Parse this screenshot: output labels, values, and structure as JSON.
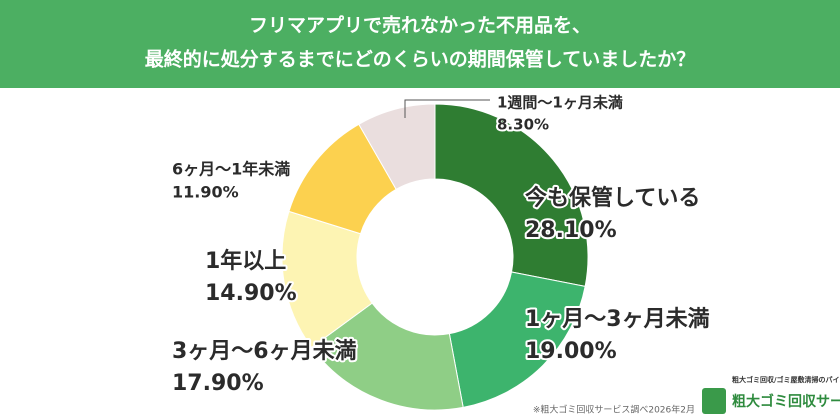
{
  "chart_data": {
    "type": "donut",
    "title": [
      "フリマアプリで売れなかった不用品を、",
      "最終的に処分するまでにどのくらいの期間保管していましたか？"
    ],
    "categories": [
      "今も保管している",
      "1ヶ月〜3ヶ月未満",
      "3ヶ月〜6ヶ月未満",
      "1年以上",
      "6ヶ月〜1年未満",
      "1週間〜1ヶ月未満"
    ],
    "values": [
      28.1,
      19.0,
      17.9,
      14.9,
      11.9,
      8.3
    ],
    "value_labels": [
      "28.10%",
      "19.00%",
      "17.90%",
      "14.90%",
      "11.90%",
      "8.30%"
    ],
    "colors": [
      "#2f7d32",
      "#3db46d",
      "#8fce86",
      "#fdf4b3",
      "#fcd14f",
      "#eadede"
    ],
    "source": "※粗大ゴミ回収サービス調べ2026年2月",
    "logo": {
      "tagline": "粗大ゴミ回収/ゴミ屋敷清掃のパイオニア",
      "name": "粗大ゴミ回収サービス"
    }
  }
}
